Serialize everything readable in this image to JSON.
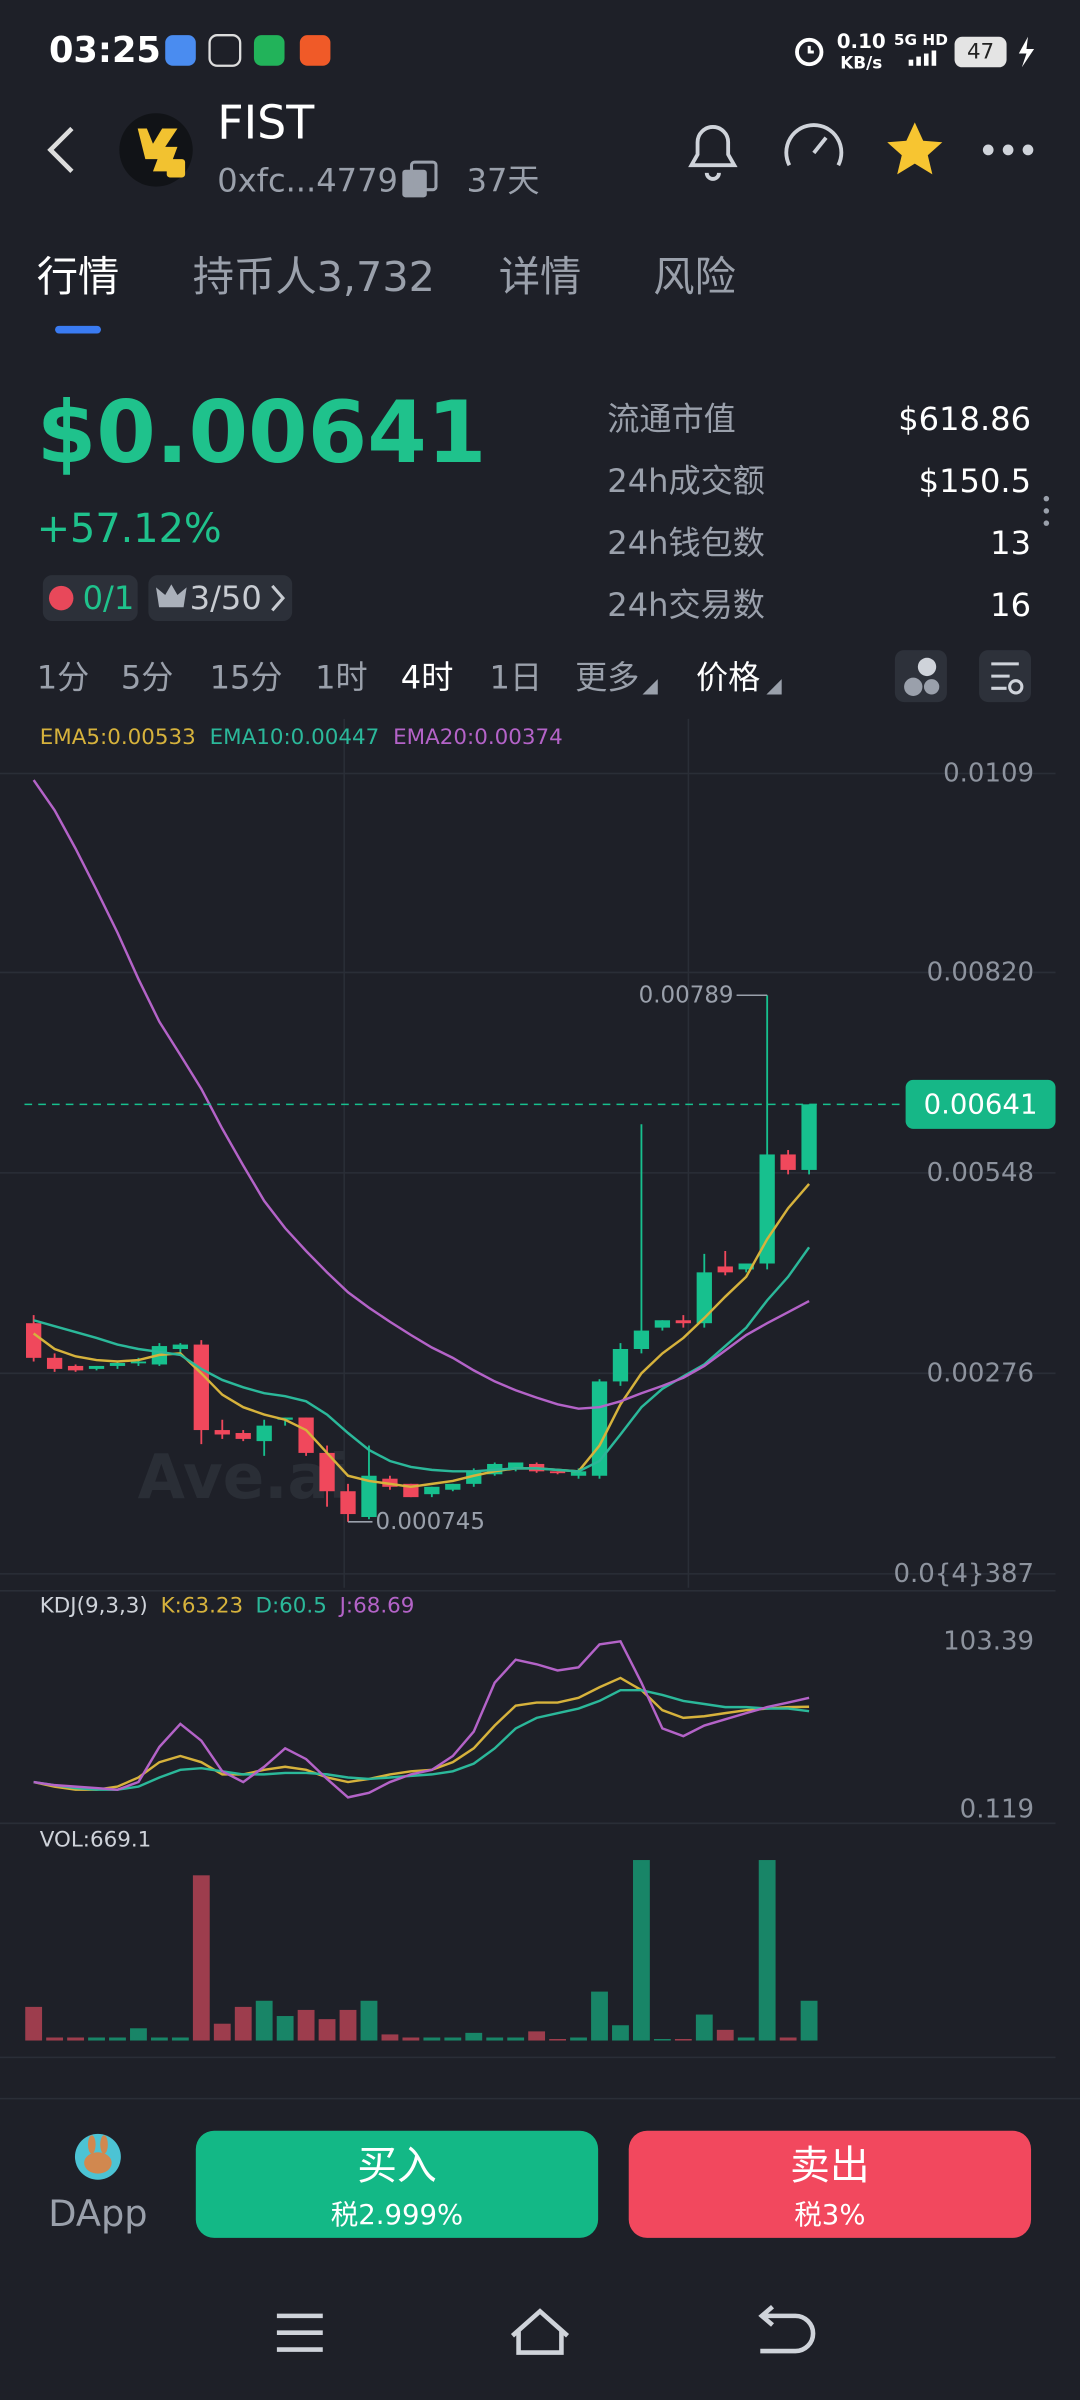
{
  "status_bar": {
    "time": "03:25",
    "net_speed": "0.10",
    "net_unit": "KB/s",
    "network": "5G HD",
    "battery": "47"
  },
  "header": {
    "name": "FIST",
    "address": "0xfc...4779",
    "age": "37天"
  },
  "tabs": [
    "行情",
    "持币人3,732",
    "详情",
    "风险"
  ],
  "price": {
    "value": "$0.00641",
    "change": "+57.12%",
    "badge1": "0/1",
    "badge2": "3/50"
  },
  "stats": [
    {
      "label": "流通市值",
      "value": "$618.86"
    },
    {
      "label": "24h成交额",
      "value": "$150.5"
    },
    {
      "label": "24h钱包数",
      "value": "13"
    },
    {
      "label": "24h交易数",
      "value": "16"
    }
  ],
  "timeframes": [
    "1分",
    "5分",
    "15分",
    "1时",
    "4时",
    "1日",
    "更多",
    "价格"
  ],
  "chart_data": [
    {
      "type": "candlestick",
      "watermark": "Ave.ai",
      "up_color": "#17c08e",
      "down_color": "#f0485c",
      "ylim": [
        -0.00015,
        0.01164
      ],
      "yticks": [
        0.0109,
        {
          "value": 0.0082,
          "label": "0.00820"
        },
        0.00548,
        0.00276,
        {
          "value": 3.87e-05,
          "label": "0.0{4}387"
        }
      ],
      "grid": true,
      "candles": {
        "open": [
          0.00344,
          0.00297,
          0.00286,
          0.00282,
          0.00286,
          0.0029,
          0.00288,
          0.00309,
          0.00315,
          0.00199,
          0.00195,
          0.00184,
          0.00213,
          0.00216,
          0.00168,
          0.00116,
          0.00081,
          0.00133,
          0.00126,
          0.00112,
          0.00118,
          0.00126,
          0.00139,
          0.00147,
          0.00153,
          0.00143,
          0.00137,
          0.00137,
          0.00265,
          0.00309,
          0.00338,
          0.00348,
          0.00344,
          0.00421,
          0.00417,
          0.00425,
          0.00573,
          0.00552
        ],
        "high": [
          0.00355,
          0.00303,
          0.00288,
          0.00286,
          0.00292,
          0.00297,
          0.00317,
          0.00317,
          0.00321,
          0.00213,
          0.00199,
          0.00213,
          0.00216,
          0.00216,
          0.00178,
          0.00126,
          0.00178,
          0.00137,
          0.00126,
          0.00122,
          0.00126,
          0.00147,
          0.00155,
          0.00155,
          0.00155,
          0.00143,
          0.00147,
          0.00268,
          0.00317,
          0.00614,
          0.00348,
          0.00355,
          0.00438,
          0.00442,
          0.00425,
          0.00789,
          0.00579,
          0.00641
        ],
        "low": [
          0.00292,
          0.00278,
          0.00278,
          0.0028,
          0.00282,
          0.00286,
          0.00286,
          0.00303,
          0.0018,
          0.00187,
          0.00184,
          0.00164,
          0.00205,
          0.00164,
          0.00095,
          0.000745,
          0.00078,
          0.00118,
          0.00108,
          0.00108,
          0.00116,
          0.00122,
          0.00137,
          0.00143,
          0.00141,
          0.00139,
          0.00133,
          0.00133,
          0.00259,
          0.00303,
          0.00334,
          0.00338,
          0.00338,
          0.00409,
          0.00413,
          0.00417,
          0.00546,
          0.00546
        ],
        "close": [
          0.00297,
          0.00282,
          0.0028,
          0.00286,
          0.0029,
          0.00292,
          0.00313,
          0.00315,
          0.00199,
          0.00193,
          0.00187,
          0.00205,
          0.00216,
          0.00168,
          0.00116,
          0.00085,
          0.00137,
          0.00122,
          0.00108,
          0.00122,
          0.00126,
          0.00143,
          0.00153,
          0.00155,
          0.00143,
          0.00141,
          0.00143,
          0.00265,
          0.00309,
          0.00334,
          0.00348,
          0.00344,
          0.00413,
          0.00413,
          0.00425,
          0.00573,
          0.00552,
          0.00641
        ]
      },
      "series": [
        {
          "name": "EMA5:0.00533",
          "color": "#d6b23c",
          "values": [
            0.0033,
            0.00309,
            0.00299,
            0.00294,
            0.00292,
            0.00294,
            0.00301,
            0.00303,
            0.00276,
            0.00247,
            0.0023,
            0.0022,
            0.00213,
            0.00199,
            0.00168,
            0.00137,
            0.0013,
            0.00126,
            0.00122,
            0.00126,
            0.0013,
            0.00137,
            0.00143,
            0.00147,
            0.00147,
            0.00145,
            0.00143,
            0.00178,
            0.00234,
            0.00276,
            0.00303,
            0.00324,
            0.00351,
            0.0038,
            0.00407,
            0.00458,
            0.005,
            0.00533
          ]
        },
        {
          "name": "EMA10:0.00447",
          "color": "#2bb89a",
          "values": [
            0.00348,
            0.0034,
            0.00332,
            0.00324,
            0.00315,
            0.00309,
            0.00305,
            0.00301,
            0.00282,
            0.00267,
            0.00257,
            0.00249,
            0.00245,
            0.00238,
            0.0022,
            0.00195,
            0.00172,
            0.00157,
            0.00149,
            0.00145,
            0.00143,
            0.00143,
            0.00145,
            0.00147,
            0.00147,
            0.00145,
            0.00143,
            0.00157,
            0.00193,
            0.0023,
            0.00255,
            0.00272,
            0.00288,
            0.00313,
            0.00338,
            0.00375,
            0.00407,
            0.00447
          ]
        },
        {
          "name": "EMA20:0.00374",
          "color": "#b463c8",
          "values": [
            0.01081,
            0.0104,
            0.00988,
            0.00932,
            0.00874,
            0.00811,
            0.00753,
            0.00708,
            0.00662,
            0.00608,
            0.00558,
            0.0051,
            0.00473,
            0.00442,
            0.00413,
            0.00386,
            0.00365,
            0.00346,
            0.00328,
            0.00311,
            0.00297,
            0.0028,
            0.00265,
            0.00253,
            0.00243,
            0.00234,
            0.00228,
            0.0023,
            0.00238,
            0.00249,
            0.00259,
            0.0027,
            0.00286,
            0.00307,
            0.00328,
            0.00344,
            0.00359,
            0.00374
          ]
        }
      ]
    },
    {
      "type": "line",
      "label": "KDJ(9,3,3)",
      "ylim": [
        0.119,
        103.39
      ],
      "yticks": [
        103.39,
        0.119
      ],
      "grid": false,
      "series": [
        {
          "name": "K:63.23",
          "color": "#d6b23c",
          "values": [
            17.0,
            14.2,
            12.3,
            12.3,
            14.2,
            19.8,
            29.2,
            33.0,
            29.2,
            21.7,
            21.7,
            24.5,
            26.4,
            24.5,
            19.8,
            17.0,
            18.9,
            21.7,
            23.6,
            24.5,
            29.2,
            37.7,
            51.7,
            63.9,
            65.8,
            65.8,
            68.7,
            75.2,
            80.9,
            73.4,
            61.1,
            56.4,
            57.4,
            59.3,
            61.1,
            62.1,
            63.0,
            63.23
          ]
        },
        {
          "name": "D:60.5",
          "color": "#2bb89a",
          "values": [
            17.0,
            15.1,
            13.3,
            12.3,
            12.3,
            14.2,
            19.8,
            24.5,
            25.5,
            23.6,
            21.7,
            21.7,
            22.6,
            22.6,
            21.7,
            19.8,
            18.9,
            19.8,
            20.8,
            21.7,
            23.6,
            28.3,
            37.7,
            49.9,
            56.4,
            59.3,
            62.1,
            66.8,
            73.4,
            73.4,
            70.5,
            66.8,
            64.9,
            63.0,
            63.0,
            62.1,
            62.1,
            60.5
          ]
        },
        {
          "name": "J:68.69",
          "color": "#b463c8",
          "values": [
            17.0,
            15.1,
            14.2,
            13.3,
            12.3,
            17.0,
            38.6,
            52.7,
            42.4,
            23.6,
            17.0,
            26.4,
            37.7,
            31.1,
            18.9,
            7.6,
            10.4,
            17.0,
            21.7,
            24.5,
            33.0,
            48.0,
            78.0,
            92.1,
            89.3,
            85.5,
            87.4,
            101.5,
            103.39,
            78.0,
            49.9,
            45.2,
            51.7,
            55.5,
            59.3,
            63.0,
            65.8,
            68.69
          ]
        }
      ]
    },
    {
      "type": "bar",
      "series": [
        {
          "name": "VOL:669.1",
          "values": [
            566,
            51,
            51,
            51,
            51,
            206,
            51,
            51,
            2779,
            283,
            566,
            669,
            412,
            515,
            360,
            515,
            669,
            103,
            51,
            51,
            51,
            129,
            51,
            51,
            154,
            26,
            51,
            823,
            257,
            3036,
            26,
            26,
            437,
            180,
            51,
            3036,
            51,
            669.1
          ]
        }
      ]
    }
  ],
  "actions": {
    "dapp": "DApp",
    "buy": "买入",
    "buy_tax": "税2.999%",
    "sell": "卖出",
    "sell_tax": "税3%"
  }
}
